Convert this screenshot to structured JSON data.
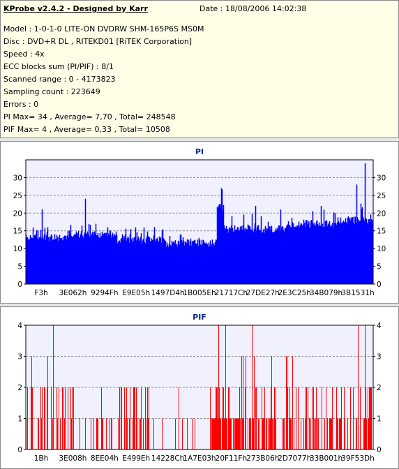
{
  "header": {
    "title": "KProbe v2.4.2 - Designed by Karr",
    "date": "Date : 18/08/2006 14:02:38",
    "lines": [
      "Model : 1-0-1-0 LITE-ON DVDRW SHM-165P6S MS0M",
      "Disc : DVD+R DL , RITEKD01 [RiTEK Corporation]",
      "Speed : 4x",
      "ECC blocks sum (PI/PIF) : 8/1",
      "Scanned range : 0 - 4173823",
      "Sampling count : 223649",
      "Errors : 0",
      "PI Max= 34 , Average= 7,70 , Total= 248548",
      "PIF Max= 4 , Average= 0,33 , Total= 10508"
    ]
  },
  "colors": {
    "pi": "#0000ff",
    "pif": "#ff0000",
    "plot_bg": "#f0f0ff",
    "grid": "#8c8c8c"
  },
  "chart_data": [
    {
      "type": "area",
      "title": "PI",
      "ylim": [
        0,
        35
      ],
      "yticks": [
        0,
        5,
        10,
        15,
        20,
        25,
        30
      ],
      "xticks": [
        "F3h",
        "3E062h",
        "9294Fh",
        "E9E05h",
        "1497D4h",
        "1B005Eh",
        "21717Ch",
        "27DE27h",
        "2E3C25h",
        "34B079h",
        "3B1531h"
      ],
      "grid": "horizontal dashed",
      "segments": [
        {
          "x_from": 0.0,
          "x_to": 0.12,
          "base": 12.5,
          "peak": 16
        },
        {
          "x_from": 0.12,
          "x_to": 0.26,
          "base": 13.5,
          "peak": 18
        },
        {
          "x_from": 0.26,
          "x_to": 0.4,
          "base": 12,
          "peak": 16
        },
        {
          "x_from": 0.4,
          "x_to": 0.55,
          "base": 11,
          "peak": 14
        },
        {
          "x_from": 0.55,
          "x_to": 0.57,
          "base": 21,
          "peak": 27
        },
        {
          "x_from": 0.57,
          "x_to": 0.75,
          "base": 15,
          "peak": 21
        },
        {
          "x_from": 0.75,
          "x_to": 0.9,
          "base": 16.5,
          "peak": 21
        },
        {
          "x_from": 0.9,
          "x_to": 1.0,
          "base": 17.5,
          "peak": 23
        }
      ],
      "peaks": [
        {
          "x": 0.046,
          "y": 21
        },
        {
          "x": 0.17,
          "y": 24
        },
        {
          "x": 0.37,
          "y": 16
        },
        {
          "x": 0.562,
          "y": 27
        },
        {
          "x": 0.66,
          "y": 22
        },
        {
          "x": 0.85,
          "y": 22
        },
        {
          "x": 0.952,
          "y": 28
        },
        {
          "x": 0.976,
          "y": 34
        }
      ]
    },
    {
      "type": "bar",
      "title": "PIF",
      "ylim": [
        0,
        4
      ],
      "yticks": [
        0,
        1,
        2,
        3,
        4
      ],
      "xticks": [
        "1Bh",
        "3E008h",
        "8EE04h",
        "E499Eh",
        "14228Ch",
        "1A7E03h",
        "20F11Fh",
        "273B06h",
        "2D7077h",
        "33B001h",
        "39F53Dh"
      ],
      "grid": "horizontal dashed",
      "density": [
        {
          "x_from": 0.0,
          "x_to": 0.16,
          "rate": 0.42,
          "p2": 0.5,
          "p3": 0.04
        },
        {
          "x_from": 0.16,
          "x_to": 0.26,
          "rate": 0.22,
          "p2": 0.25,
          "p3": 0.03
        },
        {
          "x_from": 0.26,
          "x_to": 0.36,
          "rate": 0.4,
          "p2": 0.45,
          "p3": 0.03
        },
        {
          "x_from": 0.36,
          "x_to": 0.53,
          "rate": 0.08,
          "p2": 0.2,
          "p3": 0.0
        },
        {
          "x_from": 0.53,
          "x_to": 0.62,
          "rate": 0.75,
          "p2": 0.3,
          "p3": 0.05
        },
        {
          "x_from": 0.62,
          "x_to": 0.8,
          "rate": 0.55,
          "p2": 0.3,
          "p3": 0.05
        },
        {
          "x_from": 0.8,
          "x_to": 1.0,
          "rate": 0.5,
          "p2": 0.35,
          "p3": 0.05
        }
      ],
      "max_bars": [
        {
          "x": 0.078,
          "y": 4
        },
        {
          "x": 0.554,
          "y": 4
        },
        {
          "x": 0.575,
          "y": 4
        },
        {
          "x": 0.651,
          "y": 4
        },
        {
          "x": 0.955,
          "y": 4
        },
        {
          "x": 0.975,
          "y": 4
        }
      ]
    }
  ]
}
